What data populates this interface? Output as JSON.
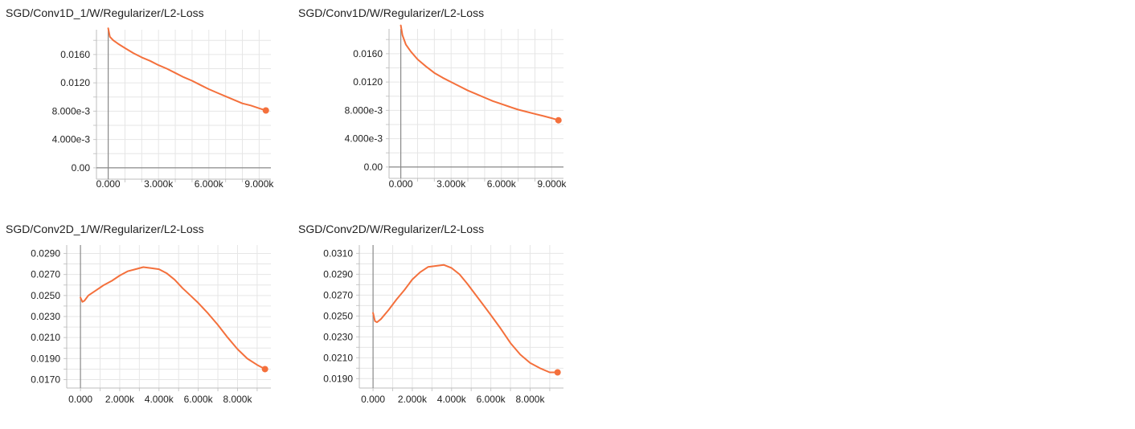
{
  "chart_data": [
    {
      "type": "line",
      "title": "SGD/Conv1D_1/W/Regularizer/L2-Loss",
      "xlim": [
        -700,
        9700
      ],
      "ylim": [
        -0.0016,
        0.0195
      ],
      "x_ticks": [
        0,
        3000,
        6000,
        9000
      ],
      "x_tick_labels": [
        "0.000",
        "3.000k",
        "6.000k",
        "9.000k"
      ],
      "y_ticks": [
        0.0,
        0.004,
        0.008,
        0.012,
        0.016
      ],
      "y_tick_labels": [
        "0.00",
        "4.000e-3",
        "8.000e-3",
        "0.0120",
        "0.0160"
      ],
      "series": [
        {
          "color": "#f4703c",
          "x": [
            0,
            100,
            300,
            600,
            1000,
            1500,
            2000,
            2500,
            3000,
            3500,
            4000,
            4500,
            5000,
            5500,
            6000,
            6500,
            7000,
            7500,
            8000,
            8500,
            9000,
            9400
          ],
          "y": [
            0.0197,
            0.0185,
            0.018,
            0.0175,
            0.0169,
            0.0162,
            0.0156,
            0.0151,
            0.0145,
            0.014,
            0.0134,
            0.0128,
            0.0123,
            0.0117,
            0.0111,
            0.0106,
            0.0101,
            0.0096,
            0.0091,
            0.0088,
            0.0084,
            0.0081
          ]
        }
      ]
    },
    {
      "type": "line",
      "title": "SGD/Conv1D/W/Regularizer/L2-Loss",
      "xlim": [
        -700,
        9700
      ],
      "ylim": [
        -0.0016,
        0.0195
      ],
      "x_ticks": [
        0,
        3000,
        6000,
        9000
      ],
      "x_tick_labels": [
        "0.000",
        "3.000k",
        "6.000k",
        "9.000k"
      ],
      "y_ticks": [
        0.0,
        0.004,
        0.008,
        0.012,
        0.016
      ],
      "y_tick_labels": [
        "0.00",
        "4.000e-3",
        "8.000e-3",
        "0.0120",
        "0.0160"
      ],
      "series": [
        {
          "color": "#f4703c",
          "x": [
            0,
            100,
            300,
            600,
            1000,
            1500,
            2000,
            2500,
            3000,
            3500,
            4000,
            4500,
            5000,
            5500,
            6000,
            6500,
            7000,
            7500,
            8000,
            8500,
            9000,
            9400
          ],
          "y": [
            0.02,
            0.0186,
            0.0173,
            0.0163,
            0.0152,
            0.0142,
            0.0133,
            0.0126,
            0.012,
            0.0114,
            0.0108,
            0.0103,
            0.0098,
            0.0093,
            0.0089,
            0.0085,
            0.0081,
            0.0078,
            0.0075,
            0.0072,
            0.0069,
            0.0066
          ]
        }
      ]
    },
    {
      "type": "line",
      "title": "SGD/Conv2D_1/W/Regularizer/L2-Loss",
      "xlim": [
        -700,
        9700
      ],
      "ylim": [
        0.0162,
        0.0298
      ],
      "x_ticks": [
        0,
        2000,
        4000,
        6000,
        8000
      ],
      "x_tick_labels": [
        "0.000",
        "2.000k",
        "4.000k",
        "6.000k",
        "8.000k"
      ],
      "y_ticks": [
        0.017,
        0.019,
        0.021,
        0.023,
        0.025,
        0.027,
        0.029
      ],
      "y_tick_labels": [
        "0.0170",
        "0.0190",
        "0.0210",
        "0.0230",
        "0.0250",
        "0.0270",
        "0.0290"
      ],
      "series": [
        {
          "color": "#f4703c",
          "x": [
            0,
            100,
            200,
            400,
            800,
            1200,
            1600,
            2000,
            2400,
            2800,
            3200,
            3600,
            4000,
            4400,
            4800,
            5200,
            5600,
            6000,
            6500,
            7000,
            7500,
            8000,
            8500,
            9000,
            9400
          ],
          "y": [
            0.0248,
            0.0244,
            0.0245,
            0.025,
            0.0255,
            0.026,
            0.0264,
            0.0269,
            0.0273,
            0.0275,
            0.0277,
            0.0276,
            0.0275,
            0.0271,
            0.0265,
            0.0257,
            0.025,
            0.0243,
            0.0233,
            0.0222,
            0.021,
            0.0199,
            0.019,
            0.0184,
            0.018
          ]
        }
      ]
    },
    {
      "type": "line",
      "title": "SGD/Conv2D/W/Regularizer/L2-Loss",
      "xlim": [
        -700,
        9700
      ],
      "ylim": [
        0.0181,
        0.0318
      ],
      "x_ticks": [
        0,
        2000,
        4000,
        6000,
        8000
      ],
      "x_tick_labels": [
        "0.000",
        "2.000k",
        "4.000k",
        "6.000k",
        "8.000k"
      ],
      "y_ticks": [
        0.019,
        0.021,
        0.023,
        0.025,
        0.027,
        0.029,
        0.031
      ],
      "y_tick_labels": [
        "0.0190",
        "0.0210",
        "0.0230",
        "0.0250",
        "0.0270",
        "0.0290",
        "0.0310"
      ],
      "series": [
        {
          "color": "#f4703c",
          "x": [
            0,
            100,
            200,
            400,
            800,
            1200,
            1600,
            2000,
            2400,
            2800,
            3200,
            3600,
            4000,
            4400,
            4800,
            5200,
            5600,
            6000,
            6500,
            7000,
            7500,
            8000,
            8500,
            9000,
            9400
          ],
          "y": [
            0.0253,
            0.0245,
            0.0244,
            0.0247,
            0.0256,
            0.0266,
            0.0275,
            0.0285,
            0.0292,
            0.0297,
            0.0298,
            0.0299,
            0.0296,
            0.029,
            0.0281,
            0.0271,
            0.0261,
            0.0251,
            0.0238,
            0.0224,
            0.0213,
            0.0205,
            0.02,
            0.0196,
            0.0196
          ]
        }
      ]
    }
  ]
}
